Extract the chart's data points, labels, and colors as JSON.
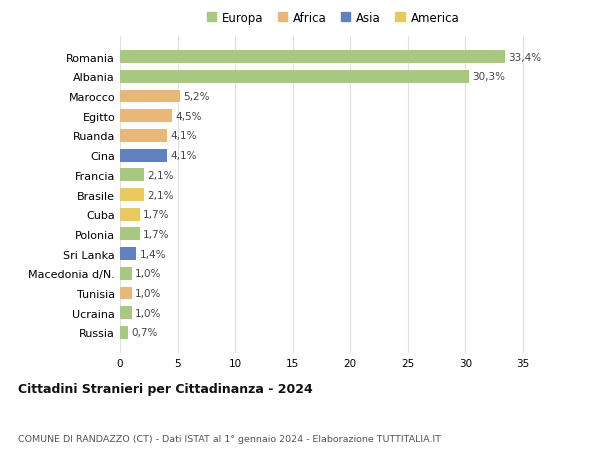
{
  "countries": [
    "Romania",
    "Albania",
    "Marocco",
    "Egitto",
    "Ruanda",
    "Cina",
    "Francia",
    "Brasile",
    "Cuba",
    "Polonia",
    "Sri Lanka",
    "Macedonia d/N.",
    "Tunisia",
    "Ucraina",
    "Russia"
  ],
  "values": [
    33.4,
    30.3,
    5.2,
    4.5,
    4.1,
    4.1,
    2.1,
    2.1,
    1.7,
    1.7,
    1.4,
    1.0,
    1.0,
    1.0,
    0.7
  ],
  "labels": [
    "33,4%",
    "30,3%",
    "5,2%",
    "4,5%",
    "4,1%",
    "4,1%",
    "2,1%",
    "2,1%",
    "1,7%",
    "1,7%",
    "1,4%",
    "1,0%",
    "1,0%",
    "1,0%",
    "0,7%"
  ],
  "continents": [
    "Europa",
    "Europa",
    "Africa",
    "Africa",
    "Africa",
    "Asia",
    "Europa",
    "America",
    "America",
    "Europa",
    "Asia",
    "Europa",
    "Africa",
    "Europa",
    "Europa"
  ],
  "continent_colors": {
    "Europa": "#a8c882",
    "Africa": "#e8b87a",
    "Asia": "#6080c0",
    "America": "#e8c860"
  },
  "legend_order": [
    "Europa",
    "Africa",
    "Asia",
    "America"
  ],
  "title": "Cittadini Stranieri per Cittadinanza - 2024",
  "subtitle": "COMUNE DI RANDAZZO (CT) - Dati ISTAT al 1° gennaio 2024 - Elaborazione TUTTITALIA.IT",
  "xlim": [
    0,
    37
  ],
  "xticks": [
    0,
    5,
    10,
    15,
    20,
    25,
    30,
    35
  ],
  "background_color": "#ffffff",
  "grid_color": "#e0e0e0",
  "bar_height": 0.65
}
